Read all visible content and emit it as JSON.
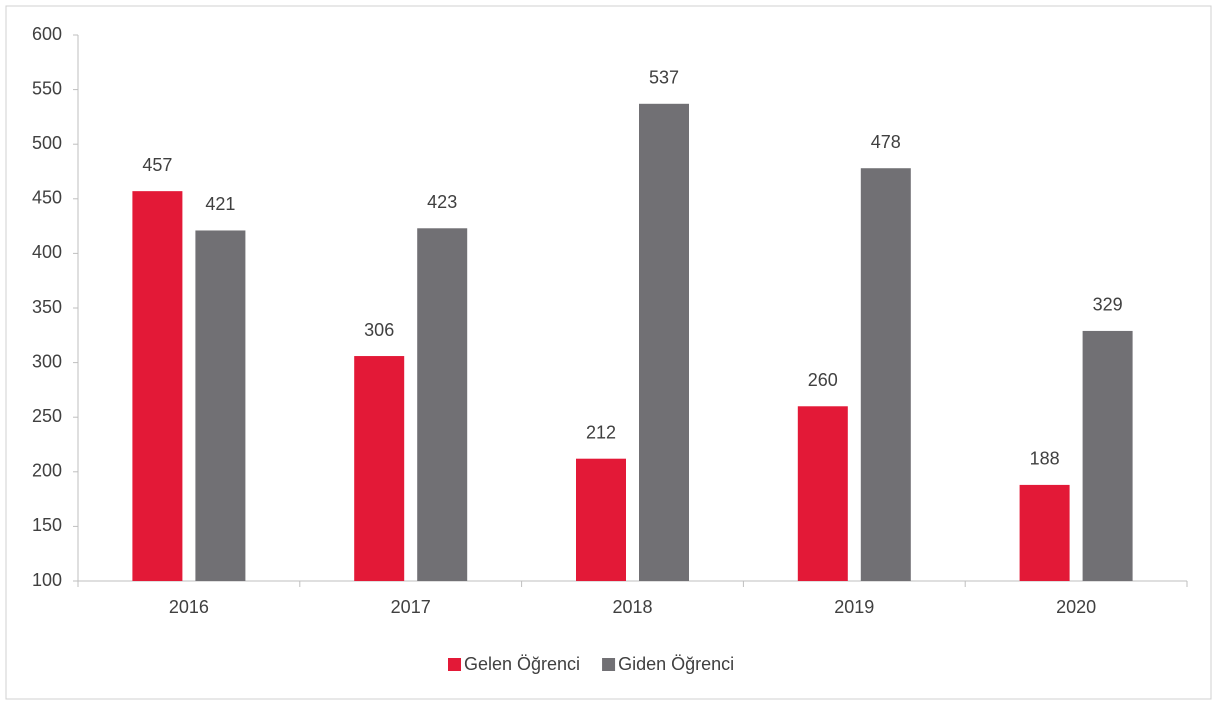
{
  "chart_data": {
    "type": "bar",
    "categories": [
      "2016",
      "2017",
      "2018",
      "2019",
      "2020"
    ],
    "series": [
      {
        "name": "Gelen Öğrenci",
        "color": "#e31937",
        "values": [
          457,
          306,
          212,
          260,
          188
        ]
      },
      {
        "name": "Giden Öğrenci",
        "color": "#717074",
        "values": [
          421,
          423,
          537,
          478,
          329
        ]
      }
    ],
    "ylim": [
      100,
      600
    ],
    "yticks": [
      100,
      150,
      200,
      250,
      300,
      350,
      400,
      450,
      500,
      550,
      600
    ],
    "grid": false,
    "legend": "bottom"
  }
}
